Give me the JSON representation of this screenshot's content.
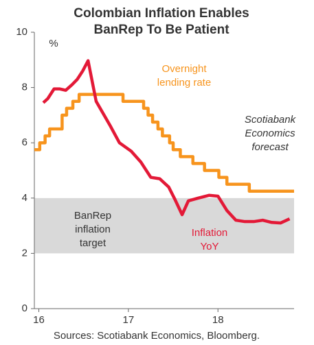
{
  "chart_data": {
    "type": "line",
    "title": [
      "Colombian Inflation Enables",
      "BanRep To Be Patient"
    ],
    "y_unit": "%",
    "annotations": {
      "overnight": [
        "Overnight",
        "lending rate"
      ],
      "forecast": [
        "Scotiabank",
        "Economics",
        "forecast"
      ],
      "target": [
        "BanRep",
        "inflation",
        "target"
      ],
      "inflation": [
        "Inflation",
        "YoY"
      ]
    },
    "source": "Sources: Scotiabank Economics, Bloomberg.",
    "target_band": [
      2,
      4
    ],
    "band_color": "#d9d9d9",
    "xlim": [
      15.95,
      18.85
    ],
    "xticks": [
      16,
      17,
      18
    ],
    "ylim": [
      0,
      10
    ],
    "yticks": [
      0,
      2,
      4,
      6,
      8,
      10
    ],
    "series": [
      {
        "name": "Overnight lending rate",
        "color": "#f7941d",
        "x": [
          15.95,
          16.01,
          16.01,
          16.07,
          16.07,
          16.12,
          16.12,
          16.26,
          16.26,
          16.31,
          16.31,
          16.38,
          16.38,
          16.45,
          16.45,
          16.94,
          16.94,
          17.17,
          17.17,
          17.22,
          17.22,
          17.27,
          17.27,
          17.33,
          17.33,
          17.38,
          17.38,
          17.46,
          17.46,
          17.5,
          17.5,
          17.58,
          17.58,
          17.72,
          17.72,
          17.85,
          17.85,
          18.01,
          18.01,
          18.1,
          18.1,
          18.35,
          18.35,
          18.85
        ],
        "values": [
          5.75,
          5.75,
          6,
          6,
          6.25,
          6.25,
          6.5,
          6.5,
          7,
          7,
          7.25,
          7.25,
          7.5,
          7.5,
          7.75,
          7.75,
          7.5,
          7.5,
          7.25,
          7.25,
          7,
          7,
          6.75,
          6.75,
          6.5,
          6.5,
          6.25,
          6.25,
          6,
          6,
          5.75,
          5.75,
          5.5,
          5.5,
          5.25,
          5.25,
          5,
          5,
          4.75,
          4.75,
          4.5,
          4.5,
          4.25,
          4.25
        ]
      },
      {
        "name": "Inflation YoY",
        "color": "#e31937",
        "x": [
          16.05,
          16.1,
          16.17,
          16.23,
          16.3,
          16.37,
          16.43,
          16.49,
          16.55,
          16.64,
          16.8,
          16.9,
          17.03,
          17.14,
          17.25,
          17.35,
          17.45,
          17.52,
          17.6,
          17.67,
          17.78,
          17.9,
          18.0,
          18.1,
          18.2,
          18.3,
          18.4,
          18.5,
          18.6,
          18.7,
          18.8
        ],
        "values": [
          7.45,
          7.6,
          7.95,
          7.95,
          7.9,
          8.1,
          8.3,
          8.6,
          8.97,
          7.5,
          6.6,
          6.0,
          5.7,
          5.3,
          4.75,
          4.7,
          4.4,
          3.95,
          3.4,
          3.9,
          4.0,
          4.1,
          4.07,
          3.55,
          3.2,
          3.15,
          3.15,
          3.2,
          3.12,
          3.1,
          3.25
        ]
      }
    ]
  }
}
